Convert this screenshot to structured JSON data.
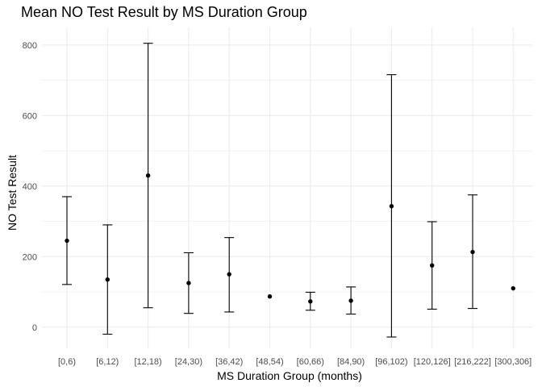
{
  "chart_data": {
    "type": "errorbar",
    "title": "Mean NO Test Result by MS Duration Group",
    "xlabel": "MS Duration Group (months)",
    "ylabel": "NO Test Result",
    "ylim": [
      -60,
      850
    ],
    "y_ticks": [
      0,
      200,
      400,
      600,
      800
    ],
    "y_minor_ticks": [
      100,
      300,
      500,
      700
    ],
    "grid": true,
    "legend": "none",
    "colors": {
      "point": "#000000",
      "errorbar": "#000000",
      "grid": "#ebebeb",
      "tick_text": "#4d4d4d"
    },
    "categories": [
      "[0,6)",
      "[6,12)",
      "[12,18)",
      "[24,30)",
      "[36,42)",
      "[48,54)",
      "[60,66)",
      "[84,90)",
      "[96,102)",
      "[120,126]",
      "[216,222]",
      "[300,306]"
    ],
    "mean": [
      245,
      135,
      430,
      125,
      150,
      87,
      73,
      75,
      343,
      175,
      213,
      110
    ],
    "lower": [
      121,
      -20,
      55,
      39,
      43,
      null,
      48,
      37,
      -28,
      51,
      53,
      null
    ],
    "upper": [
      370,
      290,
      805,
      211,
      254,
      null,
      99,
      114,
      716,
      299,
      375,
      null
    ]
  }
}
